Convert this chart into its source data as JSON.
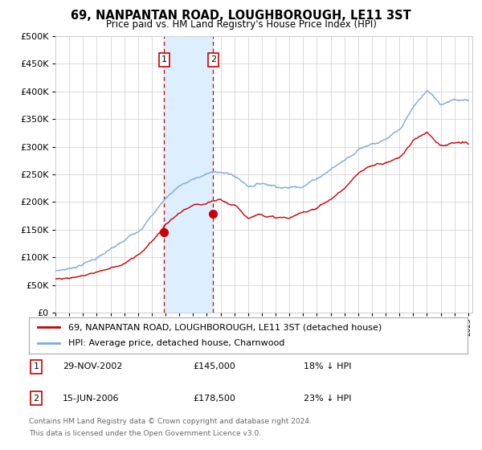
{
  "title": "69, NANPANTAN ROAD, LOUGHBOROUGH, LE11 3ST",
  "subtitle": "Price paid vs. HM Land Registry's House Price Index (HPI)",
  "legend_line1": "69, NANPANTAN ROAD, LOUGHBOROUGH, LE11 3ST (detached house)",
  "legend_line2": "HPI: Average price, detached house, Charnwood",
  "transaction1_date": "29-NOV-2002",
  "transaction1_price": "£145,000",
  "transaction1_hpi": "18% ↓ HPI",
  "transaction2_date": "15-JUN-2006",
  "transaction2_price": "£178,500",
  "transaction2_hpi": "23% ↓ HPI",
  "footnote1": "Contains HM Land Registry data © Crown copyright and database right 2024.",
  "footnote2": "This data is licensed under the Open Government Licence v3.0.",
  "red_color": "#cc0000",
  "blue_color": "#7aaadd",
  "shaded_color": "#ddeeff",
  "grid_color": "#cccccc",
  "background_color": "#ffffff",
  "ylim": [
    0,
    500000
  ],
  "yticks": [
    0,
    50000,
    100000,
    150000,
    200000,
    250000,
    300000,
    350000,
    400000,
    450000,
    500000
  ],
  "transaction1_year": 2002.91,
  "transaction2_year": 2006.46,
  "t1_price_val": 145000,
  "t2_price_val": 178500,
  "hpi_base_years": [
    1995,
    1996,
    1997,
    1998,
    1999,
    2000,
    2001,
    2002,
    2003,
    2004,
    2005,
    2006,
    2007,
    2008,
    2009,
    2010,
    2011,
    2012,
    2013,
    2014,
    2015,
    2016,
    2017,
    2018,
    2019,
    2020,
    2021,
    2022,
    2023,
    2024,
    2025
  ],
  "hpi_base_vals": [
    75000,
    80000,
    90000,
    102000,
    115000,
    128000,
    148000,
    178000,
    210000,
    235000,
    245000,
    255000,
    260000,
    252000,
    235000,
    242000,
    240000,
    238000,
    245000,
    260000,
    278000,
    295000,
    318000,
    332000,
    338000,
    350000,
    390000,
    420000,
    395000,
    410000,
    405000
  ],
  "red_base_years": [
    1995,
    1996,
    1997,
    1998,
    1999,
    2000,
    2001,
    2002,
    2003,
    2004,
    2005,
    2006,
    2007,
    2008,
    2009,
    2010,
    2011,
    2012,
    2013,
    2014,
    2015,
    2016,
    2017,
    2018,
    2019,
    2020,
    2021,
    2022,
    2023,
    2024,
    2025
  ],
  "red_base_vals": [
    62000,
    66000,
    70000,
    78000,
    86000,
    96000,
    108000,
    135000,
    165000,
    185000,
    195000,
    195000,
    200000,
    188000,
    168000,
    178000,
    172000,
    170000,
    178000,
    190000,
    205000,
    225000,
    248000,
    262000,
    268000,
    278000,
    308000,
    325000,
    305000,
    308000,
    305000
  ]
}
